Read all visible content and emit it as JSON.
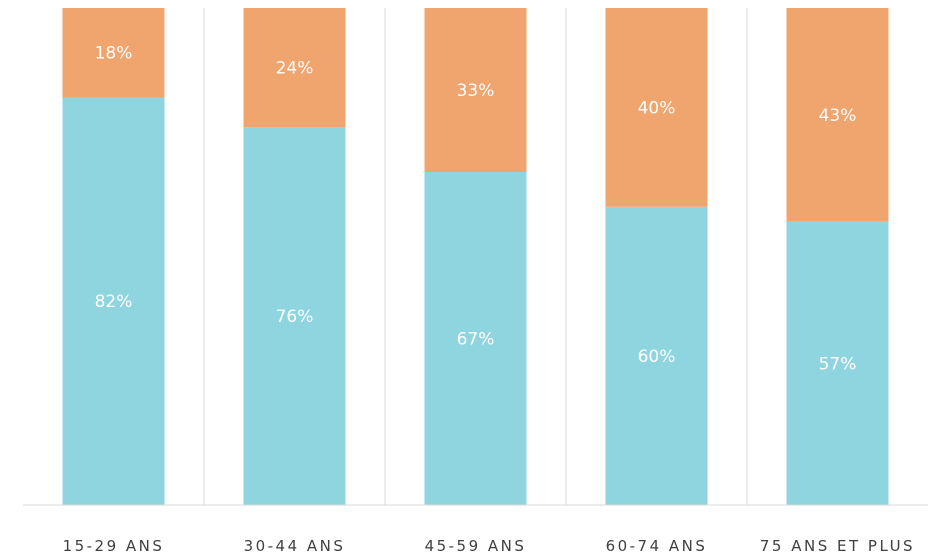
{
  "chart_data": {
    "type": "bar",
    "stacked": true,
    "percent_stacked": true,
    "categories": [
      "15-29 ANS",
      "30-44 ANS",
      "45-59 ANS",
      "60-74 ANS",
      "75 ANS ET PLUS"
    ],
    "series": [
      {
        "values": [
          82,
          76,
          67,
          60,
          57
        ],
        "labels": [
          "82%",
          "76%",
          "67%",
          "60%",
          "57%"
        ],
        "color": "#8fd5e0"
      },
      {
        "values": [
          18,
          24,
          33,
          40,
          43
        ],
        "labels": [
          "18%",
          "24%",
          "33%",
          "40%",
          "43%"
        ],
        "color": "#f0a56f"
      }
    ],
    "ylim": [
      0,
      100
    ],
    "grid": false,
    "category_dividers": true,
    "legend": "none",
    "title": "",
    "xlabel": "",
    "ylabel": ""
  }
}
